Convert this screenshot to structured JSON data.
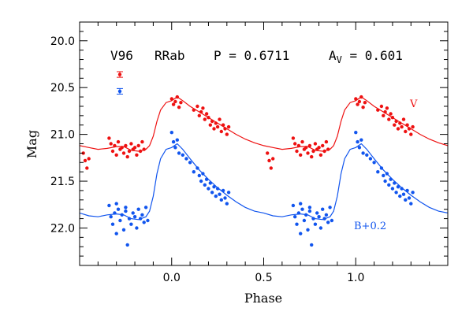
{
  "chart_data": {
    "type": "scatter",
    "xlabel": "Phase",
    "ylabel": "Mag",
    "xlim": [
      -0.5,
      1.5
    ],
    "ylim": [
      22.4,
      19.8
    ],
    "y_inverted": true,
    "x_ticks": [
      "0.0",
      "0.5",
      "1.0"
    ],
    "x_tick_values": [
      0.0,
      0.5,
      1.0
    ],
    "y_ticks": [
      "20.0",
      "20.5",
      "21.0",
      "21.5",
      "22.0"
    ],
    "y_tick_values": [
      20.0,
      20.5,
      21.0,
      21.5,
      22.0
    ],
    "header": {
      "star": "V96",
      "type": "RRab",
      "period": "P = 0.6711",
      "amp_main": "A",
      "amp_sub": "V",
      "amp_value": " = 0.601"
    },
    "error_bars": [
      {
        "series": "V",
        "center": 20.36,
        "err": 0.03
      },
      {
        "series": "B+0.2",
        "center": 20.54,
        "err": 0.03
      }
    ],
    "series": [
      {
        "name": "V",
        "color": "#ee1111",
        "template": [
          [
            0.0,
            20.64
          ],
          [
            0.03,
            20.6
          ],
          [
            0.06,
            20.64
          ],
          [
            0.1,
            20.7
          ],
          [
            0.15,
            20.76
          ],
          [
            0.2,
            20.82
          ],
          [
            0.25,
            20.88
          ],
          [
            0.3,
            20.94
          ],
          [
            0.35,
            21.0
          ],
          [
            0.4,
            21.05
          ],
          [
            0.45,
            21.09
          ],
          [
            0.5,
            21.12
          ],
          [
            0.55,
            21.14
          ],
          [
            0.6,
            21.16
          ],
          [
            0.65,
            21.15
          ],
          [
            0.7,
            21.13
          ],
          [
            0.74,
            21.13
          ],
          [
            0.78,
            21.17
          ],
          [
            0.82,
            21.18
          ],
          [
            0.86,
            21.16
          ],
          [
            0.88,
            21.12
          ],
          [
            0.9,
            21.02
          ],
          [
            0.92,
            20.86
          ],
          [
            0.94,
            20.74
          ],
          [
            0.97,
            20.66
          ],
          [
            1.0,
            20.64
          ]
        ],
        "points": [
          [
            0.0,
            20.62
          ],
          [
            0.01,
            20.68
          ],
          [
            0.02,
            20.65
          ],
          [
            0.03,
            20.6
          ],
          [
            0.04,
            20.71
          ],
          [
            0.05,
            20.66
          ],
          [
            0.12,
            20.74
          ],
          [
            0.14,
            20.7
          ],
          [
            0.15,
            20.8
          ],
          [
            0.16,
            20.76
          ],
          [
            0.17,
            20.72
          ],
          [
            0.18,
            20.84
          ],
          [
            0.19,
            20.78
          ],
          [
            0.2,
            20.82
          ],
          [
            0.21,
            20.9
          ],
          [
            0.22,
            20.86
          ],
          [
            0.23,
            20.94
          ],
          [
            0.24,
            20.88
          ],
          [
            0.25,
            20.92
          ],
          [
            0.26,
            20.84
          ],
          [
            0.27,
            20.97
          ],
          [
            0.28,
            20.9
          ],
          [
            0.29,
            20.94
          ],
          [
            0.3,
            21.0
          ],
          [
            0.31,
            20.92
          ],
          [
            0.66,
            21.04
          ],
          [
            0.67,
            21.1
          ],
          [
            0.68,
            21.18
          ],
          [
            0.69,
            21.12
          ],
          [
            0.7,
            21.22
          ],
          [
            0.71,
            21.08
          ],
          [
            0.72,
            21.16
          ],
          [
            0.73,
            21.14
          ],
          [
            0.74,
            21.2
          ],
          [
            0.75,
            21.12
          ],
          [
            0.76,
            21.24
          ],
          [
            0.77,
            21.18
          ],
          [
            0.78,
            21.1
          ],
          [
            0.79,
            21.16
          ],
          [
            0.8,
            21.14
          ],
          [
            0.81,
            21.22
          ],
          [
            0.82,
            21.12
          ],
          [
            0.83,
            21.18
          ],
          [
            0.84,
            21.08
          ],
          [
            0.85,
            21.16
          ],
          [
            0.52,
            21.2
          ],
          [
            0.53,
            21.28
          ],
          [
            0.54,
            21.36
          ],
          [
            0.55,
            21.26
          ]
        ]
      },
      {
        "name": "B+0.2",
        "color": "#1155ee",
        "template": [
          [
            0.0,
            21.14
          ],
          [
            0.03,
            21.1
          ],
          [
            0.06,
            21.16
          ],
          [
            0.1,
            21.26
          ],
          [
            0.15,
            21.38
          ],
          [
            0.2,
            21.48
          ],
          [
            0.25,
            21.57
          ],
          [
            0.3,
            21.65
          ],
          [
            0.35,
            21.72
          ],
          [
            0.4,
            21.78
          ],
          [
            0.45,
            21.82
          ],
          [
            0.5,
            21.84
          ],
          [
            0.55,
            21.87
          ],
          [
            0.6,
            21.88
          ],
          [
            0.65,
            21.86
          ],
          [
            0.7,
            21.85
          ],
          [
            0.74,
            21.86
          ],
          [
            0.78,
            21.9
          ],
          [
            0.82,
            21.91
          ],
          [
            0.86,
            21.88
          ],
          [
            0.88,
            21.82
          ],
          [
            0.9,
            21.66
          ],
          [
            0.92,
            21.42
          ],
          [
            0.94,
            21.26
          ],
          [
            0.97,
            21.16
          ],
          [
            1.0,
            21.14
          ]
        ],
        "points": [
          [
            0.0,
            20.98
          ],
          [
            0.01,
            21.08
          ],
          [
            0.02,
            21.14
          ],
          [
            0.03,
            21.06
          ],
          [
            0.04,
            21.2
          ],
          [
            0.06,
            21.22
          ],
          [
            0.08,
            21.26
          ],
          [
            0.1,
            21.3
          ],
          [
            0.12,
            21.4
          ],
          [
            0.14,
            21.36
          ],
          [
            0.15,
            21.44
          ],
          [
            0.16,
            21.5
          ],
          [
            0.17,
            21.42
          ],
          [
            0.18,
            21.54
          ],
          [
            0.19,
            21.48
          ],
          [
            0.2,
            21.58
          ],
          [
            0.21,
            21.52
          ],
          [
            0.22,
            21.62
          ],
          [
            0.23,
            21.56
          ],
          [
            0.24,
            21.66
          ],
          [
            0.25,
            21.58
          ],
          [
            0.26,
            21.64
          ],
          [
            0.27,
            21.7
          ],
          [
            0.28,
            21.6
          ],
          [
            0.29,
            21.68
          ],
          [
            0.3,
            21.74
          ],
          [
            0.31,
            21.62
          ],
          [
            0.66,
            21.76
          ],
          [
            0.67,
            21.88
          ],
          [
            0.68,
            21.96
          ],
          [
            0.69,
            21.84
          ],
          [
            0.7,
            22.06
          ],
          [
            0.71,
            21.8
          ],
          [
            0.72,
            21.92
          ],
          [
            0.73,
            21.86
          ],
          [
            0.74,
            22.02
          ],
          [
            0.75,
            21.82
          ],
          [
            0.76,
            22.18
          ],
          [
            0.77,
            21.9
          ],
          [
            0.78,
            21.96
          ],
          [
            0.79,
            21.84
          ],
          [
            0.8,
            21.88
          ],
          [
            0.81,
            22.0
          ],
          [
            0.82,
            21.8
          ],
          [
            0.83,
            21.9
          ],
          [
            0.84,
            21.86
          ],
          [
            0.85,
            21.94
          ],
          [
            0.86,
            21.78
          ],
          [
            0.87,
            21.92
          ],
          [
            0.7,
            21.74
          ],
          [
            0.75,
            21.78
          ]
        ]
      }
    ]
  }
}
